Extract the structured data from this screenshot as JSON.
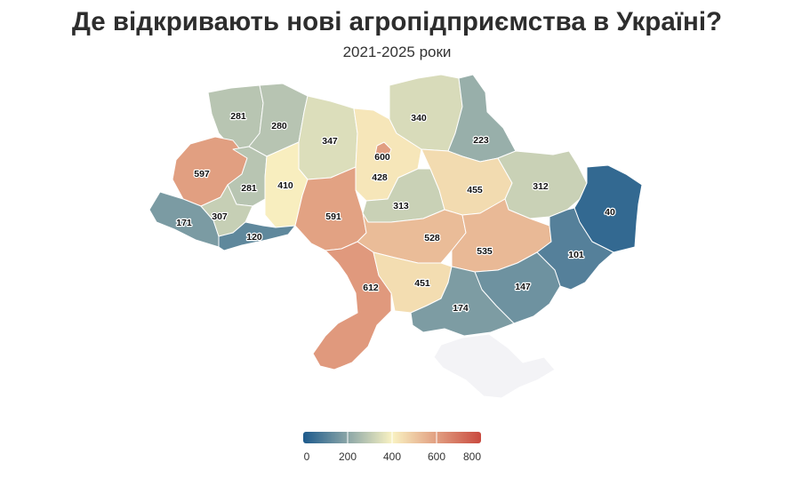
{
  "title": "Де відкривають нові агропідприємства в Україні?",
  "subtitle": "2021-2025 роки",
  "map_data": {
    "colors": {
      "low": "#1d5a8c",
      "mid": "#f9f2c2",
      "high": "#c94a3f",
      "no_data": "#f3f3f6"
    },
    "scale_domain": [
      0,
      800
    ],
    "regions": [
      {
        "id": "volyn",
        "value": 281
      },
      {
        "id": "rivne",
        "value": 280
      },
      {
        "id": "zhytomyr",
        "value": 347
      },
      {
        "id": "kyiv-oblast",
        "value": 428
      },
      {
        "id": "kyiv-city",
        "value": 600
      },
      {
        "id": "chernihiv",
        "value": 340
      },
      {
        "id": "sumy",
        "value": 223
      },
      {
        "id": "lviv",
        "value": 597
      },
      {
        "id": "ternopil",
        "value": 281
      },
      {
        "id": "khmelnytskyi",
        "value": 410
      },
      {
        "id": "vinnytsia",
        "value": 591
      },
      {
        "id": "cherkasy",
        "value": 313
      },
      {
        "id": "poltava",
        "value": 455
      },
      {
        "id": "kharkiv",
        "value": 312
      },
      {
        "id": "luhansk",
        "value": 40
      },
      {
        "id": "zakarpattia",
        "value": 171
      },
      {
        "id": "ivano-frankivsk",
        "value": 307
      },
      {
        "id": "chernivtsi",
        "value": 120
      },
      {
        "id": "kirovohrad",
        "value": 528
      },
      {
        "id": "dnipropetrovsk",
        "value": 535
      },
      {
        "id": "donetsk",
        "value": 101
      },
      {
        "id": "odesa",
        "value": 612
      },
      {
        "id": "mykolaiv",
        "value": 451
      },
      {
        "id": "zaporizhzhia",
        "value": 147
      },
      {
        "id": "kherson",
        "value": 174
      },
      {
        "id": "crimea",
        "value": null
      }
    ]
  },
  "legend": {
    "ticks": [
      "0",
      "200",
      "400",
      "600",
      "800"
    ]
  }
}
